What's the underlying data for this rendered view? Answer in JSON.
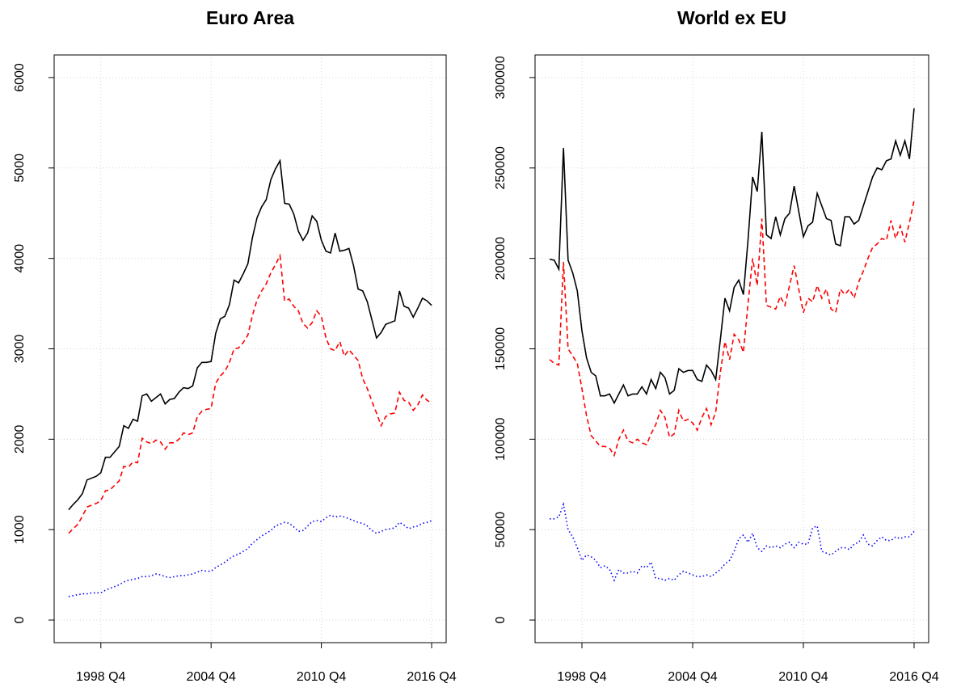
{
  "chart_data": [
    {
      "type": "line",
      "title": "Euro Area",
      "x": [
        1997,
        1997.25,
        1997.5,
        1997.75,
        1998,
        1998.25,
        1998.5,
        1998.75,
        1999,
        1999.25,
        1999.5,
        1999.75,
        2000,
        2000.25,
        2000.5,
        2000.75,
        2001,
        2001.25,
        2001.5,
        2001.75,
        2002,
        2002.25,
        2002.5,
        2002.75,
        2003,
        2003.25,
        2003.5,
        2003.75,
        2004,
        2004.25,
        2004.5,
        2004.75,
        2005,
        2005.25,
        2005.5,
        2005.75,
        2006,
        2006.25,
        2006.5,
        2006.75,
        2007,
        2007.25,
        2007.5,
        2007.75,
        2008,
        2008.25,
        2008.5,
        2008.75,
        2009,
        2009.25,
        2009.5,
        2009.75,
        2010,
        2010.25,
        2010.5,
        2010.75,
        2011,
        2011.25,
        2011.5,
        2011.75,
        2012,
        2012.25,
        2012.5,
        2012.75,
        2013,
        2013.25,
        2013.5,
        2013.75,
        2014,
        2014.25,
        2014.5,
        2014.75,
        2015,
        2015.25,
        2015.5,
        2015.75,
        2016,
        2016.25,
        2016.5,
        2016.75
      ],
      "series": [
        {
          "color": "#000000",
          "dash": "solid",
          "values": [
            1220,
            1280,
            1330,
            1400,
            1550,
            1570,
            1590,
            1630,
            1800,
            1800,
            1860,
            1920,
            2150,
            2120,
            2220,
            2200,
            2480,
            2500,
            2420,
            2460,
            2500,
            2390,
            2440,
            2450,
            2520,
            2570,
            2560,
            2590,
            2790,
            2850,
            2850,
            2860,
            3170,
            3330,
            3360,
            3490,
            3760,
            3730,
            3830,
            3940,
            4230,
            4450,
            4570,
            4650,
            4870,
            4990,
            5080,
            4610,
            4600,
            4490,
            4300,
            4200,
            4280,
            4470,
            4410,
            4200,
            4080,
            4060,
            4280,
            4080,
            4090,
            4110,
            3920,
            3660,
            3640,
            3520,
            3320,
            3120,
            3180,
            3270,
            3290,
            3310,
            3640,
            3470,
            3450,
            3350,
            3450,
            3560,
            3530,
            3480
          ]
        },
        {
          "color": "#ff0000",
          "dash": "dashed",
          "values": [
            960,
            1010,
            1060,
            1150,
            1250,
            1270,
            1290,
            1320,
            1430,
            1440,
            1490,
            1540,
            1700,
            1690,
            1750,
            1740,
            2010,
            1970,
            1950,
            1990,
            1970,
            1890,
            1960,
            1960,
            2000,
            2070,
            2050,
            2070,
            2250,
            2310,
            2330,
            2340,
            2620,
            2700,
            2750,
            2850,
            3000,
            3010,
            3070,
            3150,
            3370,
            3540,
            3640,
            3720,
            3840,
            3930,
            4030,
            3530,
            3550,
            3470,
            3420,
            3280,
            3230,
            3290,
            3420,
            3360,
            3120,
            3000,
            2980,
            3080,
            2920,
            2990,
            2930,
            2870,
            2670,
            2560,
            2420,
            2290,
            2150,
            2250,
            2280,
            2290,
            2520,
            2430,
            2410,
            2320,
            2380,
            2490,
            2430,
            2400
          ]
        },
        {
          "color": "#0000ff",
          "dash": "dotted",
          "values": [
            260,
            270,
            280,
            290,
            290,
            300,
            300,
            300,
            330,
            350,
            370,
            390,
            420,
            440,
            450,
            460,
            480,
            480,
            490,
            510,
            500,
            480,
            470,
            480,
            490,
            490,
            500,
            510,
            530,
            550,
            540,
            540,
            580,
            610,
            640,
            680,
            710,
            730,
            760,
            790,
            850,
            890,
            930,
            960,
            990,
            1040,
            1060,
            1080,
            1070,
            1030,
            980,
            990,
            1040,
            1090,
            1100,
            1090,
            1130,
            1160,
            1140,
            1150,
            1140,
            1120,
            1100,
            1080,
            1070,
            1040,
            990,
            960,
            980,
            1000,
            1010,
            1020,
            1080,
            1050,
            1010,
            1030,
            1040,
            1070,
            1080,
            1100
          ]
        }
      ],
      "xlim": [
        1996.21,
        2017.54
      ],
      "xticks": [
        {
          "value": 1998.75,
          "label": "1998 Q4"
        },
        {
          "value": 2004.75,
          "label": "2004 Q4"
        },
        {
          "value": 2010.75,
          "label": "2010 Q4"
        },
        {
          "value": 2016.75,
          "label": "2016 Q4"
        }
      ],
      "ylim": [
        -250,
        6250
      ],
      "yticks": [
        0,
        1000,
        2000,
        3000,
        4000,
        5000,
        6000
      ],
      "grid": true
    },
    {
      "type": "line",
      "title": "World ex EU",
      "x": [
        1997,
        1997.25,
        1997.5,
        1997.75,
        1998,
        1998.25,
        1998.5,
        1998.75,
        1999,
        1999.25,
        1999.5,
        1999.75,
        2000,
        2000.25,
        2000.5,
        2000.75,
        2001,
        2001.25,
        2001.5,
        2001.75,
        2002,
        2002.25,
        2002.5,
        2002.75,
        2003,
        2003.25,
        2003.5,
        2003.75,
        2004,
        2004.25,
        2004.5,
        2004.75,
        2005,
        2005.25,
        2005.5,
        2005.75,
        2006,
        2006.25,
        2006.5,
        2006.75,
        2007,
        2007.25,
        2007.5,
        2007.75,
        2008,
        2008.25,
        2008.5,
        2008.75,
        2009,
        2009.25,
        2009.5,
        2009.75,
        2010,
        2010.25,
        2010.5,
        2010.75,
        2011,
        2011.25,
        2011.5,
        2011.75,
        2012,
        2012.25,
        2012.5,
        2012.75,
        2013,
        2013.25,
        2013.5,
        2013.75,
        2014,
        2014.25,
        2014.5,
        2014.75,
        2015,
        2015.25,
        2015.5,
        2015.75,
        2016,
        2016.25,
        2016.5,
        2016.75
      ],
      "series": [
        {
          "color": "#000000",
          "dash": "solid",
          "values": [
            199500,
            199000,
            194000,
            261000,
            199000,
            192000,
            182000,
            160000,
            145000,
            137000,
            135000,
            124000,
            124000,
            125000,
            120000,
            125000,
            130000,
            124000,
            125000,
            125000,
            129000,
            125000,
            133000,
            128000,
            137000,
            134000,
            125000,
            127000,
            139000,
            137000,
            138000,
            138000,
            133000,
            132000,
            141000,
            138000,
            133000,
            155000,
            178000,
            171000,
            184000,
            188000,
            180000,
            210000,
            245000,
            237000,
            270000,
            213000,
            211000,
            223000,
            213000,
            222000,
            225000,
            240000,
            226000,
            212000,
            218000,
            220000,
            236000,
            229000,
            222000,
            221000,
            208000,
            207000,
            223000,
            223000,
            219000,
            221000,
            229000,
            237000,
            245000,
            250000,
            249000,
            254000,
            255000,
            265000,
            257000,
            265000,
            255000,
            283000
          ]
        },
        {
          "color": "#ff0000",
          "dash": "dashed",
          "values": [
            144000,
            142000,
            141000,
            198000,
            150000,
            146000,
            142000,
            128000,
            113000,
            102000,
            99000,
            96000,
            96000,
            95000,
            91000,
            100000,
            105000,
            99000,
            98000,
            100000,
            98000,
            97000,
            103000,
            108000,
            116000,
            112000,
            101000,
            103000,
            116000,
            110000,
            111000,
            109000,
            105000,
            112000,
            117000,
            108000,
            115000,
            137000,
            154000,
            144000,
            158000,
            155000,
            148000,
            175000,
            200000,
            185000,
            222000,
            174000,
            173000,
            172000,
            179000,
            174000,
            185000,
            196000,
            183000,
            170000,
            178000,
            176000,
            185000,
            178000,
            183000,
            172000,
            170000,
            183000,
            180000,
            183000,
            178000,
            187000,
            193000,
            200000,
            206000,
            208000,
            211000,
            210000,
            221000,
            211000,
            218000,
            209000,
            220000,
            232000
          ]
        },
        {
          "color": "#0000ff",
          "dash": "dotted",
          "values": [
            56000,
            56000,
            57000,
            64000,
            50000,
            46000,
            40000,
            33000,
            36000,
            35000,
            33000,
            29000,
            30000,
            28000,
            22000,
            28000,
            26000,
            26000,
            27000,
            26000,
            30000,
            29000,
            32000,
            23000,
            23000,
            22000,
            23000,
            22000,
            25000,
            27000,
            26000,
            25000,
            24000,
            24000,
            25000,
            24000,
            26000,
            28000,
            31000,
            33000,
            38000,
            45000,
            47000,
            43000,
            48000,
            40000,
            38000,
            41000,
            40000,
            41000,
            40000,
            42000,
            43000,
            40000,
            43000,
            42000,
            42000,
            51000,
            52000,
            38000,
            37000,
            36000,
            38000,
            40000,
            40000,
            39000,
            42000,
            43000,
            47000,
            42000,
            41000,
            44000,
            46000,
            44000,
            44000,
            46000,
            45000,
            46000,
            46000,
            49000
          ]
        }
      ],
      "xlim": [
        1996.21,
        2017.54
      ],
      "xticks": [
        {
          "value": 1998.75,
          "label": "1998 Q4"
        },
        {
          "value": 2004.75,
          "label": "2004 Q4"
        },
        {
          "value": 2010.75,
          "label": "2010 Q4"
        },
        {
          "value": 2016.75,
          "label": "2016 Q4"
        }
      ],
      "ylim": [
        -12500,
        312500
      ],
      "yticks": [
        0,
        50000,
        100000,
        150000,
        200000,
        250000,
        300000
      ],
      "grid": true
    }
  ]
}
